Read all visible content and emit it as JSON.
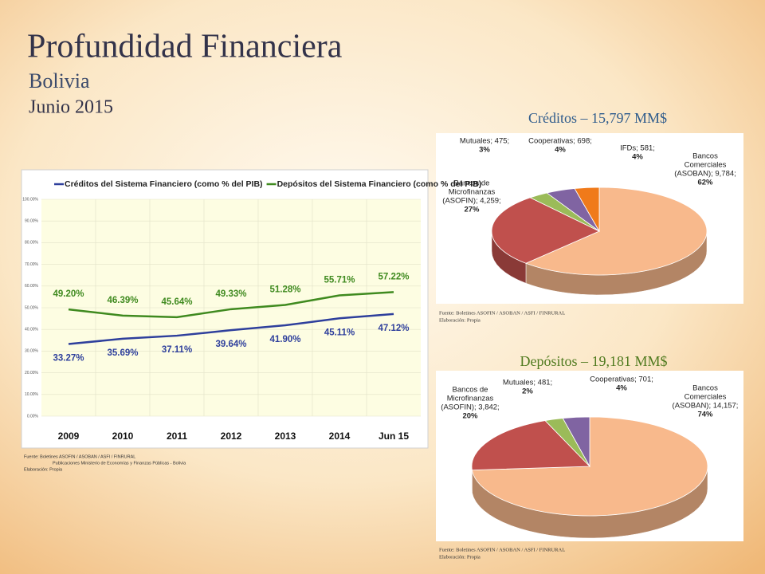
{
  "slide": {
    "title": "Profundidad Financiera",
    "subtitle": "Bolivia",
    "date": "Junio 2015"
  },
  "chart_data": [
    {
      "type": "line",
      "categories": [
        "2009",
        "2010",
        "2011",
        "2012",
        "2013",
        "2014",
        "Jun 15"
      ],
      "series": [
        {
          "name": "Créditos del Sistema Financiero (como % del PIB)",
          "color": "#2e3f9c",
          "values": [
            33.27,
            35.69,
            37.11,
            39.64,
            41.9,
            45.11,
            47.12
          ],
          "value_labels": [
            "33.27%",
            "35.69%",
            "37.11%",
            "39.64%",
            "41.90%",
            "45.11%",
            "47.12%"
          ]
        },
        {
          "name": "Depósitos del Sistema Financiero (como % del PIB)",
          "color": "#3f8a1f",
          "values": [
            49.2,
            46.39,
            45.64,
            49.33,
            51.28,
            55.71,
            57.22
          ],
          "value_labels": [
            "49.20%",
            "46.39%",
            "45.64%",
            "49.33%",
            "51.28%",
            "55.71%",
            "57.22%"
          ]
        }
      ],
      "ylim": [
        0,
        100
      ],
      "yticks": [
        {
          "value": 0,
          "label": "0.00%"
        },
        {
          "value": 10,
          "label": "10.00%"
        },
        {
          "value": 20,
          "label": "20.00%"
        },
        {
          "value": 30,
          "label": "30.00%"
        },
        {
          "value": 40,
          "label": "40.00%"
        },
        {
          "value": 50,
          "label": "50.00%"
        },
        {
          "value": 60,
          "label": "60.00%"
        },
        {
          "value": 70,
          "label": "70.00%"
        },
        {
          "value": 80,
          "label": "80.00%"
        },
        {
          "value": 90,
          "label": "90.00%"
        },
        {
          "value": 100,
          "label": "100.00%"
        }
      ],
      "grid": true,
      "source": [
        "Fuente: Boletines ASOFIN / ASOBAN / ASFI / FINRURAL",
        "Publicaciones Ministerio de Economías y Finanzas Públicas - Bolivia",
        "Elaboración: Propia"
      ]
    },
    {
      "type": "pie",
      "title": "Créditos – 15,797 MM$",
      "title_color": "#2e5b8c",
      "labels": [
        [
          "Bancos",
          "Comerciales",
          "(ASOBAN); 9,784;"
        ],
        [
          "Bancos de",
          "Microfinanzas",
          "(ASOFIN); 4,259;"
        ],
        [
          "Mutuales; 475;"
        ],
        [
          "Cooperativas; 698;"
        ],
        [
          "IFDs; 581;"
        ]
      ],
      "values": [
        9784,
        4259,
        475,
        698,
        581
      ],
      "percent_labels": [
        "62%",
        "27%",
        "3%",
        "4%",
        "4%"
      ],
      "colors": [
        "#f8b98c",
        "#c0504d",
        "#9bbb59",
        "#8064a2",
        "#f07a1a"
      ],
      "source": [
        "Fuente: Boletines ASOFIN / ASOBAN / ASFI / FINRURAL",
        "Elaboración: Propia"
      ]
    },
    {
      "type": "pie",
      "title": "Depósitos – 19,181 MM$",
      "title_color": "#4f7a1e",
      "labels": [
        [
          "Bancos",
          "Comerciales",
          "(ASOBAN); 14,157;"
        ],
        [
          "Bancos de",
          "Microfinanzas",
          "(ASOFIN); 3,842;"
        ],
        [
          "Mutuales; 481;"
        ],
        [
          "Cooperativas; 701;"
        ]
      ],
      "values": [
        14157,
        3842,
        481,
        701
      ],
      "percent_labels": [
        "74%",
        "20%",
        "2%",
        "4%"
      ],
      "colors": [
        "#f8b98c",
        "#c0504d",
        "#9bbb59",
        "#8064a2"
      ],
      "source": [
        "Fuente: Boletines ASOFIN / ASOBAN / ASFI / FINRURAL",
        "Elaboración: Propia"
      ]
    }
  ]
}
